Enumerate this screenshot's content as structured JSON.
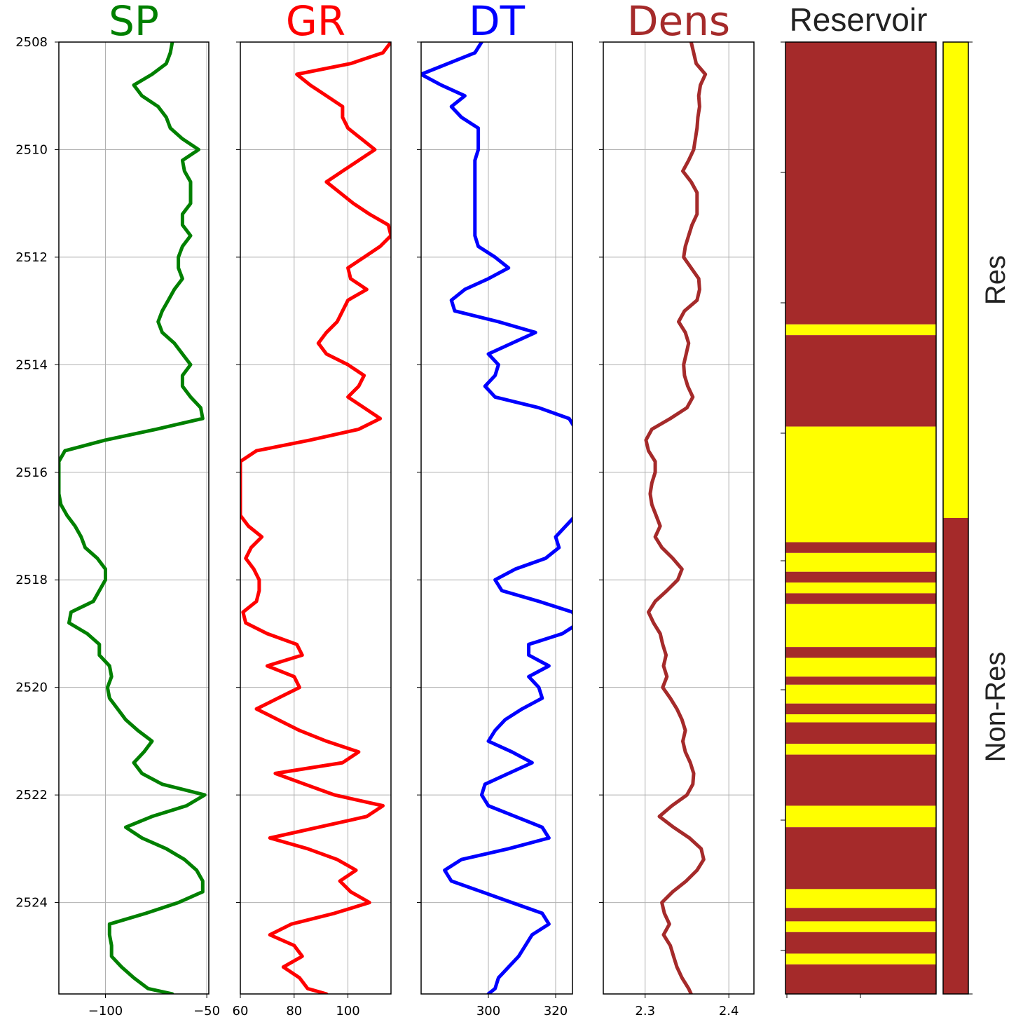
{
  "chart_data": {
    "type": "line",
    "depth_axis": {
      "range": [
        2508,
        2525.7
      ],
      "ticks": [
        2508,
        2510,
        2512,
        2514,
        2516,
        2518,
        2520,
        2522,
        2524
      ],
      "inverted": true
    },
    "grid": true,
    "depth": [
      2508.0,
      2508.2,
      2508.4,
      2508.6,
      2508.8,
      2509.0,
      2509.2,
      2509.4,
      2509.6,
      2509.8,
      2510.0,
      2510.2,
      2510.4,
      2510.6,
      2510.8,
      2511.0,
      2511.2,
      2511.4,
      2511.6,
      2511.8,
      2512.0,
      2512.2,
      2512.4,
      2512.6,
      2512.8,
      2513.0,
      2513.2,
      2513.4,
      2513.6,
      2513.8,
      2514.0,
      2514.2,
      2514.4,
      2514.6,
      2514.8,
      2515.0,
      2515.2,
      2515.4,
      2515.6,
      2515.8,
      2516.0,
      2516.2,
      2516.4,
      2516.6,
      2516.8,
      2517.0,
      2517.2,
      2517.4,
      2517.6,
      2517.8,
      2518.0,
      2518.2,
      2518.4,
      2518.6,
      2518.8,
      2519.0,
      2519.2,
      2519.4,
      2519.6,
      2519.8,
      2520.0,
      2520.2,
      2520.4,
      2520.6,
      2520.8,
      2521.0,
      2521.2,
      2521.4,
      2521.6,
      2521.8,
      2522.0,
      2522.2,
      2522.4,
      2522.6,
      2522.8,
      2523.0,
      2523.2,
      2523.4,
      2523.6,
      2523.8,
      2524.0,
      2524.2,
      2524.4,
      2524.6,
      2524.8,
      2525.0,
      2525.2,
      2525.4,
      2525.6,
      2525.7
    ],
    "tracks": [
      {
        "title": "SP",
        "color": "#008000",
        "xlim": [
          -123,
          -49
        ],
        "xticks": [
          -100,
          -50
        ],
        "xtick_labels": [
          "−100",
          "−50"
        ],
        "values": [
          -67,
          -68,
          -70,
          -77,
          -86,
          -82,
          -74,
          -70,
          -68,
          -62,
          -54,
          -62,
          -61,
          -58,
          -58,
          -58,
          -62,
          -62,
          -58,
          -62,
          -64,
          -64,
          -62,
          -66,
          -69,
          -72,
          -74,
          -72,
          -66,
          -62,
          -58,
          -62,
          -62,
          -58,
          -53,
          -52,
          -75,
          -100,
          -120,
          -123,
          -123,
          -123,
          -123,
          -122,
          -119,
          -115,
          -112,
          -110,
          -104,
          -100,
          -100,
          -103,
          -106,
          -117,
          -118,
          -109,
          -103,
          -103,
          -98,
          -97,
          -99,
          -98,
          -94,
          -90,
          -84,
          -77,
          -81,
          -86,
          -82,
          -72,
          -51,
          -60,
          -77,
          -90,
          -82,
          -70,
          -61,
          -55,
          -52,
          -52,
          -64,
          -80,
          -98,
          -98,
          -97,
          -97,
          -92,
          -86,
          -79,
          -67
        ]
      },
      {
        "title": "GR",
        "color": "#ff0000",
        "xlim": [
          60,
          116
        ],
        "xticks": [
          60,
          80,
          100
        ],
        "xtick_labels": [
          "60",
          "80",
          "100"
        ],
        "values": [
          116,
          113,
          101,
          81,
          86,
          92,
          98,
          98,
          100,
          105,
          110,
          104,
          98,
          92,
          97,
          102,
          108,
          115,
          116,
          112,
          106,
          100,
          101,
          107,
          100,
          98,
          96,
          92,
          89,
          92,
          100,
          106,
          104,
          100,
          106,
          112,
          104,
          86,
          66,
          60,
          60,
          60,
          60,
          60,
          60,
          63,
          68,
          64,
          62,
          65,
          67,
          67,
          66,
          61,
          62,
          70,
          81,
          83,
          70,
          80,
          82,
          74,
          66,
          74,
          82,
          92,
          104,
          98,
          73,
          84,
          95,
          113,
          107,
          89,
          71,
          85,
          96,
          103,
          97,
          101,
          108,
          95,
          79,
          71,
          80,
          83,
          76,
          82,
          85,
          92
        ],
        "clip_right": true
      },
      {
        "title": "DT",
        "color": "#0000ff",
        "xlim": [
          280,
          325
        ],
        "xticks": [
          300,
          320
        ],
        "xtick_labels": [
          "300",
          "320"
        ],
        "values": [
          298,
          296,
          288,
          280,
          286,
          293,
          289,
          292,
          297,
          297,
          297,
          296,
          296,
          296,
          296,
          296,
          296,
          296,
          296,
          297,
          302,
          306,
          300,
          293,
          289,
          290,
          303,
          314,
          307,
          300,
          303,
          302,
          299,
          302,
          315,
          324,
          326,
          327,
          327,
          326,
          327,
          327,
          327,
          326,
          326,
          323,
          320,
          321,
          317,
          308,
          302,
          304,
          315,
          325,
          327,
          322,
          312,
          312,
          318,
          312,
          315,
          316,
          310,
          305,
          302,
          300,
          307,
          313,
          306,
          299,
          298,
          300,
          308,
          316,
          318,
          306,
          292,
          287,
          289,
          298,
          307,
          316,
          318,
          313,
          311,
          309,
          306,
          303,
          302,
          300
        ],
        "clip_right": true
      },
      {
        "title": "Dens",
        "color": "#a52a2a",
        "xlim": [
          2.25,
          2.43
        ],
        "xticks": [
          2.3,
          2.4
        ],
        "xtick_labels": [
          "2.3",
          "2.4"
        ],
        "values": [
          2.355,
          2.358,
          2.361,
          2.372,
          2.366,
          2.364,
          2.365,
          2.363,
          2.362,
          2.36,
          2.358,
          2.352,
          2.345,
          2.355,
          2.362,
          2.362,
          2.362,
          2.356,
          2.352,
          2.348,
          2.346,
          2.355,
          2.364,
          2.365,
          2.362,
          2.347,
          2.34,
          2.348,
          2.352,
          2.349,
          2.346,
          2.347,
          2.351,
          2.357,
          2.35,
          2.33,
          2.308,
          2.301,
          2.304,
          2.312,
          2.312,
          2.308,
          2.306,
          2.308,
          2.313,
          2.318,
          2.312,
          2.32,
          2.333,
          2.344,
          2.339,
          2.326,
          2.312,
          2.304,
          2.31,
          2.318,
          2.321,
          2.325,
          2.322,
          2.326,
          2.321,
          2.33,
          2.338,
          2.344,
          2.348,
          2.345,
          2.348,
          2.354,
          2.358,
          2.357,
          2.35,
          2.332,
          2.317,
          2.334,
          2.353,
          2.367,
          2.37,
          2.362,
          2.349,
          2.333,
          2.32,
          2.323,
          2.329,
          2.322,
          2.33,
          2.334,
          2.338,
          2.344,
          2.352,
          2.355
        ]
      }
    ],
    "reservoir_track": {
      "title": "Reservoir",
      "colors": {
        "Res": "#ffff00",
        "Non-Res": "#a52a2a"
      },
      "intervals": [
        {
          "top": 2508.0,
          "bottom": 2513.25,
          "label": "Non-Res"
        },
        {
          "top": 2513.25,
          "bottom": 2513.45,
          "label": "Res"
        },
        {
          "top": 2513.45,
          "bottom": 2515.15,
          "label": "Non-Res"
        },
        {
          "top": 2515.15,
          "bottom": 2517.3,
          "label": "Res"
        },
        {
          "top": 2517.3,
          "bottom": 2517.5,
          "label": "Non-Res"
        },
        {
          "top": 2517.5,
          "bottom": 2517.85,
          "label": "Res"
        },
        {
          "top": 2517.85,
          "bottom": 2518.05,
          "label": "Non-Res"
        },
        {
          "top": 2518.05,
          "bottom": 2518.25,
          "label": "Res"
        },
        {
          "top": 2518.25,
          "bottom": 2518.45,
          "label": "Non-Res"
        },
        {
          "top": 2518.45,
          "bottom": 2519.25,
          "label": "Res"
        },
        {
          "top": 2519.25,
          "bottom": 2519.45,
          "label": "Non-Res"
        },
        {
          "top": 2519.45,
          "bottom": 2519.8,
          "label": "Res"
        },
        {
          "top": 2519.8,
          "bottom": 2519.95,
          "label": "Non-Res"
        },
        {
          "top": 2519.95,
          "bottom": 2520.3,
          "label": "Res"
        },
        {
          "top": 2520.3,
          "bottom": 2520.5,
          "label": "Non-Res"
        },
        {
          "top": 2520.5,
          "bottom": 2520.65,
          "label": "Res"
        },
        {
          "top": 2520.65,
          "bottom": 2521.05,
          "label": "Non-Res"
        },
        {
          "top": 2521.05,
          "bottom": 2521.25,
          "label": "Res"
        },
        {
          "top": 2521.25,
          "bottom": 2522.2,
          "label": "Non-Res"
        },
        {
          "top": 2522.2,
          "bottom": 2522.6,
          "label": "Res"
        },
        {
          "top": 2522.6,
          "bottom": 2523.75,
          "label": "Non-Res"
        },
        {
          "top": 2523.75,
          "bottom": 2524.1,
          "label": "Res"
        },
        {
          "top": 2524.1,
          "bottom": 2524.35,
          "label": "Non-Res"
        },
        {
          "top": 2524.35,
          "bottom": 2524.55,
          "label": "Res"
        },
        {
          "top": 2524.55,
          "bottom": 2524.95,
          "label": "Non-Res"
        },
        {
          "top": 2524.95,
          "bottom": 2525.15,
          "label": "Res"
        },
        {
          "top": 2525.15,
          "bottom": 2525.7,
          "label": "Non-Res"
        }
      ],
      "colorbar": {
        "labels": [
          "Res",
          "Non-Res"
        ],
        "split_fraction": 0.5
      }
    }
  }
}
